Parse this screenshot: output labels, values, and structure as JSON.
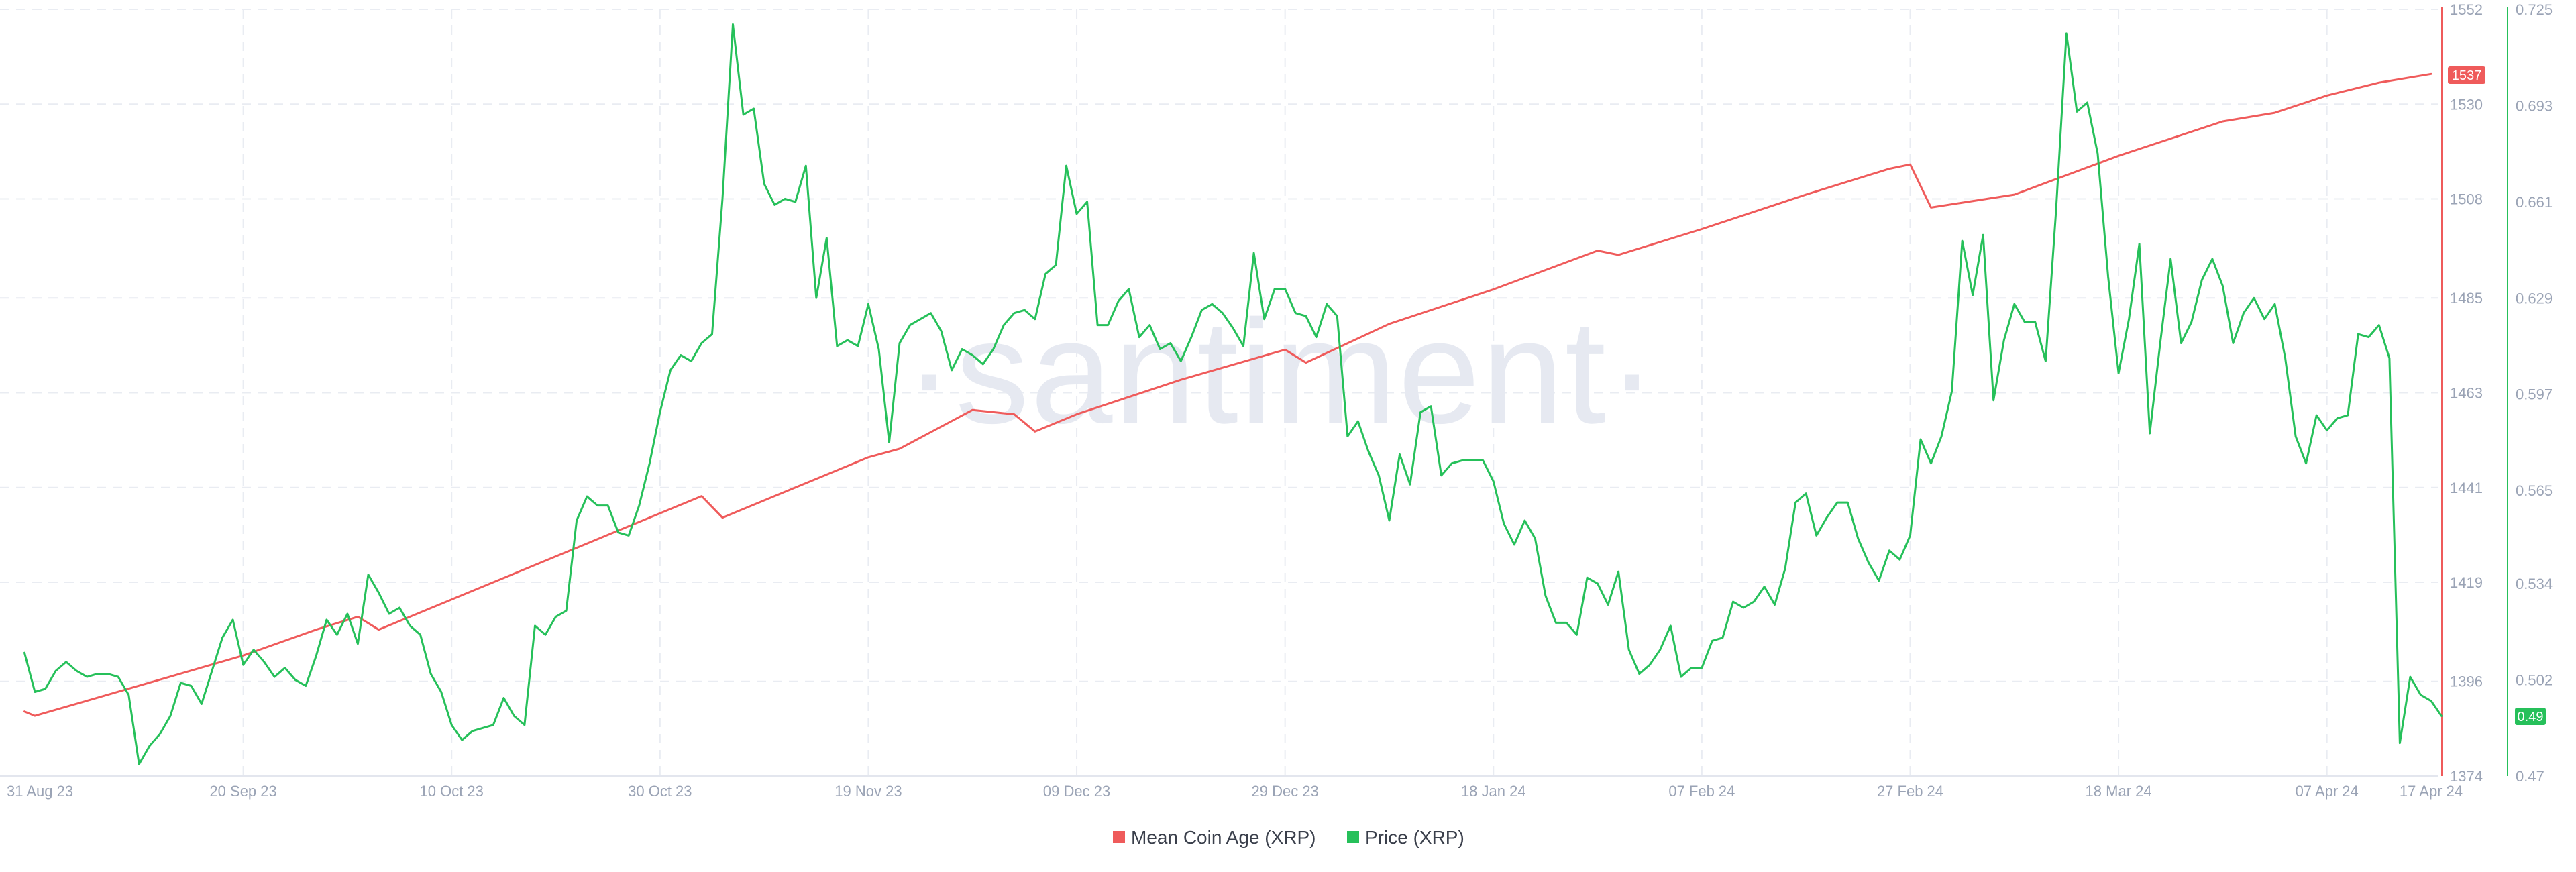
{
  "watermark": "·santiment·",
  "colors": {
    "coin_age": "#ef5b5b",
    "price": "#26c05a",
    "grid": "#e9ecf2",
    "tick": "#9aa3b5"
  },
  "legend": {
    "coin_age_label": "Mean Coin Age (XRP)",
    "price_label": "Price (XRP)"
  },
  "badges": {
    "coin_age_last": "1537",
    "price_last": "0.49"
  },
  "chart_data": {
    "type": "line",
    "title": "",
    "x_tick_labels": [
      "31 Aug 23",
      "20 Sep 23",
      "10 Oct 23",
      "30 Oct 23",
      "19 Nov 23",
      "09 Dec 23",
      "29 Dec 23",
      "18 Jan 24",
      "07 Feb 24",
      "27 Feb 24",
      "18 Mar 24",
      "07 Apr 24",
      "17 Apr 24"
    ],
    "left_axis": {
      "ticks": [
        "1552",
        "1530",
        "1508",
        "1485",
        "1463",
        "1441",
        "1419",
        "1396",
        "1374"
      ],
      "ylim": [
        1374,
        1552
      ]
    },
    "right_axis": {
      "ticks": [
        "0.725",
        "0.693",
        "0.661",
        "0.629",
        "0.597",
        "0.565",
        "0.534",
        "0.502",
        "0.47"
      ],
      "ylim": [
        0.47,
        0.725
      ]
    },
    "grid": true,
    "legend_position": "bottom-center",
    "series": [
      {
        "name": "Mean Coin Age (XRP)",
        "axis": "left",
        "points": [
          [
            "30 Aug 23",
            1389
          ],
          [
            "31 Aug 23",
            1388
          ],
          [
            "10 Sep 23",
            1395
          ],
          [
            "20 Sep 23",
            1402
          ],
          [
            "27 Sep 23",
            1408
          ],
          [
            "01 Oct 23",
            1411
          ],
          [
            "03 Oct 23",
            1408
          ],
          [
            "10 Oct 23",
            1415
          ],
          [
            "20 Oct 23",
            1425
          ],
          [
            "30 Oct 23",
            1435
          ],
          [
            "03 Nov 23",
            1439
          ],
          [
            "05 Nov 23",
            1434
          ],
          [
            "19 Nov 23",
            1448
          ],
          [
            "22 Nov 23",
            1450
          ],
          [
            "29 Nov 23",
            1459
          ],
          [
            "03 Dec 23",
            1458
          ],
          [
            "05 Dec 23",
            1454
          ],
          [
            "09 Dec 23",
            1458
          ],
          [
            "19 Dec 23",
            1466
          ],
          [
            "29 Dec 23",
            1473
          ],
          [
            "31 Dec 23",
            1470
          ],
          [
            "08 Jan 24",
            1479
          ],
          [
            "18 Jan 24",
            1487
          ],
          [
            "28 Jan 24",
            1496
          ],
          [
            "30 Jan 24",
            1495
          ],
          [
            "07 Feb 24",
            1501
          ],
          [
            "17 Feb 24",
            1509
          ],
          [
            "25 Feb 24",
            1515
          ],
          [
            "27 Feb 24",
            1516
          ],
          [
            "29 Feb 24",
            1506
          ],
          [
            "08 Mar 24",
            1509
          ],
          [
            "18 Mar 24",
            1518
          ],
          [
            "28 Mar 24",
            1526
          ],
          [
            "02 Apr 24",
            1528
          ],
          [
            "07 Apr 24",
            1532
          ],
          [
            "12 Apr 24",
            1535
          ],
          [
            "17 Apr 24",
            1537
          ]
        ]
      },
      {
        "name": "Price (XRP)",
        "axis": "right",
        "points": [
          [
            "30 Aug 23",
            0.511
          ],
          [
            "31 Aug 23",
            0.498
          ],
          [
            "01 Sep 23",
            0.499
          ],
          [
            "02 Sep 23",
            0.505
          ],
          [
            "03 Sep 23",
            0.508
          ],
          [
            "04 Sep 23",
            0.505
          ],
          [
            "05 Sep 23",
            0.503
          ],
          [
            "06 Sep 23",
            0.504
          ],
          [
            "07 Sep 23",
            0.504
          ],
          [
            "08 Sep 23",
            0.503
          ],
          [
            "09 Sep 23",
            0.497
          ],
          [
            "10 Sep 23",
            0.474
          ],
          [
            "11 Sep 23",
            0.48
          ],
          [
            "12 Sep 23",
            0.484
          ],
          [
            "13 Sep 23",
            0.49
          ],
          [
            "14 Sep 23",
            0.501
          ],
          [
            "15 Sep 23",
            0.5
          ],
          [
            "16 Sep 23",
            0.494
          ],
          [
            "17 Sep 23",
            0.505
          ],
          [
            "18 Sep 23",
            0.516
          ],
          [
            "19 Sep 23",
            0.522
          ],
          [
            "20 Sep 23",
            0.507
          ],
          [
            "21 Sep 23",
            0.512
          ],
          [
            "22 Sep 23",
            0.508
          ],
          [
            "23 Sep 23",
            0.503
          ],
          [
            "24 Sep 23",
            0.506
          ],
          [
            "25 Sep 23",
            0.502
          ],
          [
            "26 Sep 23",
            0.5
          ],
          [
            "27 Sep 23",
            0.51
          ],
          [
            "28 Sep 23",
            0.522
          ],
          [
            "29 Sep 23",
            0.517
          ],
          [
            "30 Sep 23",
            0.524
          ],
          [
            "01 Oct 23",
            0.514
          ],
          [
            "02 Oct 23",
            0.537
          ],
          [
            "03 Oct 23",
            0.531
          ],
          [
            "04 Oct 23",
            0.524
          ],
          [
            "05 Oct 23",
            0.526
          ],
          [
            "06 Oct 23",
            0.52
          ],
          [
            "07 Oct 23",
            0.517
          ],
          [
            "08 Oct 23",
            0.504
          ],
          [
            "09 Oct 23",
            0.498
          ],
          [
            "10 Oct 23",
            0.487
          ],
          [
            "11 Oct 23",
            0.482
          ],
          [
            "12 Oct 23",
            0.485
          ],
          [
            "14 Oct 23",
            0.487
          ],
          [
            "15 Oct 23",
            0.496
          ],
          [
            "16 Oct 23",
            0.49
          ],
          [
            "17 Oct 23",
            0.487
          ],
          [
            "18 Oct 23",
            0.52
          ],
          [
            "19 Oct 23",
            0.517
          ],
          [
            "20 Oct 23",
            0.523
          ],
          [
            "21 Oct 23",
            0.525
          ],
          [
            "22 Oct 23",
            0.555
          ],
          [
            "23 Oct 23",
            0.563
          ],
          [
            "24 Oct 23",
            0.56
          ],
          [
            "25 Oct 23",
            0.56
          ],
          [
            "26 Oct 23",
            0.551
          ],
          [
            "27 Oct 23",
            0.55
          ],
          [
            "28 Oct 23",
            0.56
          ],
          [
            "29 Oct 23",
            0.574
          ],
          [
            "30 Oct 23",
            0.591
          ],
          [
            "31 Oct 23",
            0.605
          ],
          [
            "01 Nov 23",
            0.61
          ],
          [
            "02 Nov 23",
            0.608
          ],
          [
            "03 Nov 23",
            0.614
          ],
          [
            "04 Nov 23",
            0.617
          ],
          [
            "05 Nov 23",
            0.662
          ],
          [
            "06 Nov 23",
            0.72
          ],
          [
            "07 Nov 23",
            0.69
          ],
          [
            "08 Nov 23",
            0.692
          ],
          [
            "09 Nov 23",
            0.667
          ],
          [
            "10 Nov 23",
            0.66
          ],
          [
            "11 Nov 23",
            0.662
          ],
          [
            "12 Nov 23",
            0.661
          ],
          [
            "13 Nov 23",
            0.673
          ],
          [
            "14 Nov 23",
            0.629
          ],
          [
            "15 Nov 23",
            0.649
          ],
          [
            "16 Nov 23",
            0.613
          ],
          [
            "17 Nov 23",
            0.615
          ],
          [
            "18 Nov 23",
            0.613
          ],
          [
            "19 Nov 23",
            0.627
          ],
          [
            "20 Nov 23",
            0.612
          ],
          [
            "21 Nov 23",
            0.581
          ],
          [
            "22 Nov 23",
            0.614
          ],
          [
            "23 Nov 23",
            0.62
          ],
          [
            "24 Nov 23",
            0.622
          ],
          [
            "25 Nov 23",
            0.624
          ],
          [
            "26 Nov 23",
            0.618
          ],
          [
            "27 Nov 23",
            0.605
          ],
          [
            "28 Nov 23",
            0.612
          ],
          [
            "29 Nov 23",
            0.61
          ],
          [
            "30 Nov 23",
            0.607
          ],
          [
            "01 Dec 23",
            0.612
          ],
          [
            "02 Dec 23",
            0.62
          ],
          [
            "03 Dec 23",
            0.624
          ],
          [
            "04 Dec 23",
            0.625
          ],
          [
            "05 Dec 23",
            0.622
          ],
          [
            "06 Dec 23",
            0.637
          ],
          [
            "07 Dec 23",
            0.64
          ],
          [
            "08 Dec 23",
            0.673
          ],
          [
            "09 Dec 23",
            0.657
          ],
          [
            "10 Dec 23",
            0.661
          ],
          [
            "11 Dec 23",
            0.62
          ],
          [
            "12 Dec 23",
            0.62
          ],
          [
            "13 Dec 23",
            0.628
          ],
          [
            "14 Dec 23",
            0.632
          ],
          [
            "15 Dec 23",
            0.616
          ],
          [
            "16 Dec 23",
            0.62
          ],
          [
            "17 Dec 23",
            0.612
          ],
          [
            "18 Dec 23",
            0.614
          ],
          [
            "19 Dec 23",
            0.608
          ],
          [
            "20 Dec 23",
            0.616
          ],
          [
            "21 Dec 23",
            0.625
          ],
          [
            "22 Dec 23",
            0.627
          ],
          [
            "23 Dec 23",
            0.624
          ],
          [
            "24 Dec 23",
            0.619
          ],
          [
            "25 Dec 23",
            0.613
          ],
          [
            "26 Dec 23",
            0.644
          ],
          [
            "27 Dec 23",
            0.622
          ],
          [
            "28 Dec 23",
            0.632
          ],
          [
            "29 Dec 23",
            0.632
          ],
          [
            "30 Dec 23",
            0.624
          ],
          [
            "31 Dec 23",
            0.623
          ],
          [
            "01 Jan 24",
            0.616
          ],
          [
            "02 Jan 24",
            0.627
          ],
          [
            "03 Jan 24",
            0.623
          ],
          [
            "04 Jan 24",
            0.583
          ],
          [
            "05 Jan 24",
            0.588
          ],
          [
            "06 Jan 24",
            0.578
          ],
          [
            "07 Jan 24",
            0.57
          ],
          [
            "08 Jan 24",
            0.555
          ],
          [
            "09 Jan 24",
            0.577
          ],
          [
            "10 Jan 24",
            0.567
          ],
          [
            "11 Jan 24",
            0.591
          ],
          [
            "12 Jan 24",
            0.593
          ],
          [
            "13 Jan 24",
            0.57
          ],
          [
            "14 Jan 24",
            0.574
          ],
          [
            "15 Jan 24",
            0.575
          ],
          [
            "16 Jan 24",
            0.575
          ],
          [
            "17 Jan 24",
            0.575
          ],
          [
            "18 Jan 24",
            0.568
          ],
          [
            "19 Jan 24",
            0.554
          ],
          [
            "20 Jan 24",
            0.547
          ],
          [
            "21 Jan 24",
            0.555
          ],
          [
            "22 Jan 24",
            0.549
          ],
          [
            "23 Jan 24",
            0.53
          ],
          [
            "24 Jan 24",
            0.521
          ],
          [
            "25 Jan 24",
            0.521
          ],
          [
            "26 Jan 24",
            0.517
          ],
          [
            "27 Jan 24",
            0.536
          ],
          [
            "28 Jan 24",
            0.534
          ],
          [
            "29 Jan 24",
            0.527
          ],
          [
            "30 Jan 24",
            0.538
          ],
          [
            "31 Jan 24",
            0.512
          ],
          [
            "01 Feb 24",
            0.504
          ],
          [
            "02 Feb 24",
            0.507
          ],
          [
            "03 Feb 24",
            0.512
          ],
          [
            "04 Feb 24",
            0.52
          ],
          [
            "05 Feb 24",
            0.503
          ],
          [
            "06 Feb 24",
            0.506
          ],
          [
            "07 Feb 24",
            0.506
          ],
          [
            "08 Feb 24",
            0.515
          ],
          [
            "09 Feb 24",
            0.516
          ],
          [
            "10 Feb 24",
            0.528
          ],
          [
            "11 Feb 24",
            0.526
          ],
          [
            "12 Feb 24",
            0.528
          ],
          [
            "13 Feb 24",
            0.533
          ],
          [
            "14 Feb 24",
            0.527
          ],
          [
            "15 Feb 24",
            0.539
          ],
          [
            "16 Feb 24",
            0.561
          ],
          [
            "17 Feb 24",
            0.564
          ],
          [
            "18 Feb 24",
            0.55
          ],
          [
            "19 Feb 24",
            0.556
          ],
          [
            "20 Feb 24",
            0.561
          ],
          [
            "21 Feb 24",
            0.561
          ],
          [
            "22 Feb 24",
            0.549
          ],
          [
            "23 Feb 24",
            0.541
          ],
          [
            "24 Feb 24",
            0.535
          ],
          [
            "25 Feb 24",
            0.545
          ],
          [
            "26 Feb 24",
            0.542
          ],
          [
            "27 Feb 24",
            0.55
          ],
          [
            "28 Feb 24",
            0.582
          ],
          [
            "29 Feb 24",
            0.574
          ],
          [
            "01 Mar 24",
            0.583
          ],
          [
            "02 Mar 24",
            0.598
          ],
          [
            "03 Mar 24",
            0.648
          ],
          [
            "04 Mar 24",
            0.63
          ],
          [
            "05 Mar 24",
            0.65
          ],
          [
            "06 Mar 24",
            0.595
          ],
          [
            "07 Mar 24",
            0.615
          ],
          [
            "08 Mar 24",
            0.627
          ],
          [
            "09 Mar 24",
            0.621
          ],
          [
            "10 Mar 24",
            0.621
          ],
          [
            "11 Mar 24",
            0.608
          ],
          [
            "12 Mar 24",
            0.658
          ],
          [
            "13 Mar 24",
            0.717
          ],
          [
            "14 Mar 24",
            0.691
          ],
          [
            "15 Mar 24",
            0.694
          ],
          [
            "16 Mar 24",
            0.677
          ],
          [
            "17 Mar 24",
            0.636
          ],
          [
            "18 Mar 24",
            0.604
          ],
          [
            "19 Mar 24",
            0.622
          ],
          [
            "20 Mar 24",
            0.647
          ],
          [
            "21 Mar 24",
            0.584
          ],
          [
            "22 Mar 24",
            0.614
          ],
          [
            "23 Mar 24",
            0.642
          ],
          [
            "24 Mar 24",
            0.614
          ],
          [
            "25 Mar 24",
            0.621
          ],
          [
            "26 Mar 24",
            0.635
          ],
          [
            "27 Mar 24",
            0.642
          ],
          [
            "28 Mar 24",
            0.633
          ],
          [
            "29 Mar 24",
            0.614
          ],
          [
            "30 Mar 24",
            0.624
          ],
          [
            "31 Mar 24",
            0.629
          ],
          [
            "01 Apr 24",
            0.622
          ],
          [
            "02 Apr 24",
            0.627
          ],
          [
            "03 Apr 24",
            0.609
          ],
          [
            "04 Apr 24",
            0.583
          ],
          [
            "05 Apr 24",
            0.574
          ],
          [
            "06 Apr 24",
            0.59
          ],
          [
            "07 Apr 24",
            0.585
          ],
          [
            "08 Apr 24",
            0.589
          ],
          [
            "09 Apr 24",
            0.59
          ],
          [
            "10 Apr 24",
            0.617
          ],
          [
            "11 Apr 24",
            0.616
          ],
          [
            "12 Apr 24",
            0.62
          ],
          [
            "13 Apr 24",
            0.609
          ],
          [
            "14 Apr 24",
            0.481
          ],
          [
            "15 Apr 24",
            0.503
          ],
          [
            "16 Apr 24",
            0.497
          ],
          [
            "17 Apr 24",
            0.495
          ],
          [
            "18 Apr 24",
            0.49
          ]
        ]
      }
    ]
  }
}
